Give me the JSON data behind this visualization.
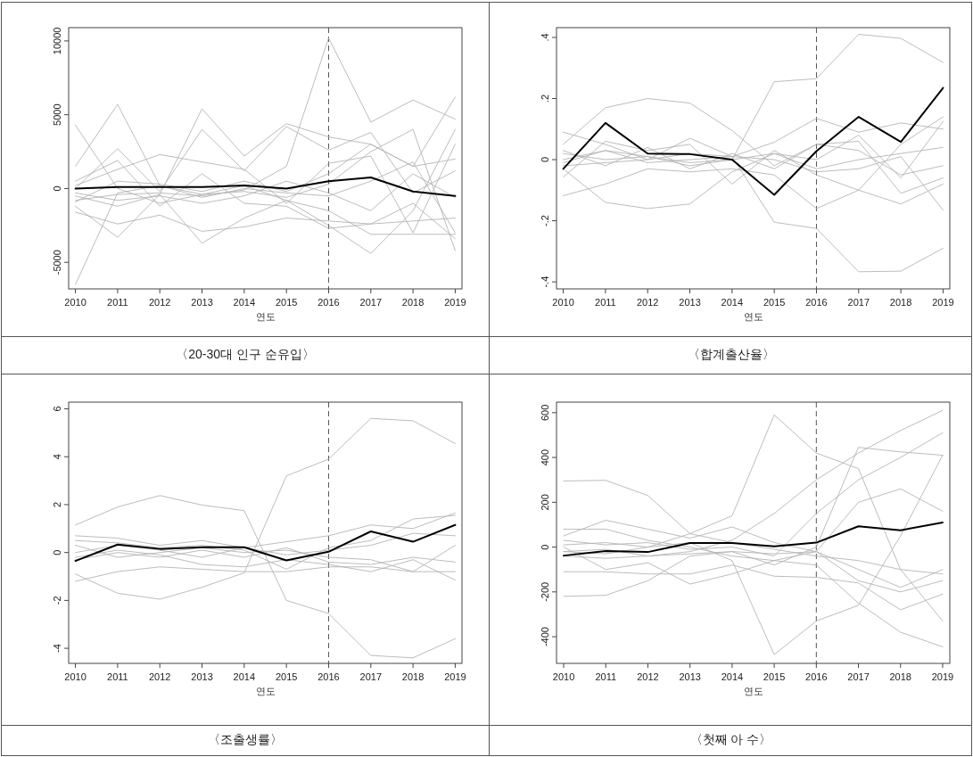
{
  "chart_data": [
    {
      "type": "line",
      "title": "〈20-30대 인구 순유입〉",
      "xlabel": "연도",
      "x": [
        2010,
        2011,
        2012,
        2013,
        2014,
        2015,
        2016,
        2017,
        2018,
        2019
      ],
      "xlim": [
        2009.84,
        2019.16
      ],
      "xticks": [
        2010,
        2011,
        2012,
        2013,
        2014,
        2015,
        2016,
        2017,
        2018,
        2019
      ],
      "ylim": [
        -6800,
        10900
      ],
      "yticks": [
        -5000,
        0,
        5000,
        10000
      ],
      "ref_lines": [
        {
          "axis": "x",
          "value": 2016,
          "line_style": "dashed",
          "color": "#555555"
        }
      ],
      "series": [
        {
          "color": "#000000",
          "values": [
            0,
            100,
            100,
            100,
            200,
            0,
            500,
            750,
            -200,
            -500
          ]
        },
        {
          "color": "#b4b4b4",
          "values": [
            -800,
            -400,
            -300,
            -500,
            -100,
            1500,
            10200,
            4500,
            6000,
            4700
          ]
        },
        {
          "color": "#b4b4b4",
          "values": [
            -6500,
            -300,
            200,
            -400,
            -200,
            -600,
            300,
            2500,
            4000,
            -4200
          ]
        },
        {
          "color": "#b4b4b4",
          "values": [
            4300,
            0,
            -1000,
            -400,
            200,
            -800,
            -2500,
            -4400,
            -1500,
            4000
          ]
        },
        {
          "color": "#b4b4b4",
          "values": [
            1500,
            5700,
            200,
            -600,
            0,
            -300,
            -500,
            500,
            1800,
            -3000
          ]
        },
        {
          "color": "#b4b4b4",
          "values": [
            -500,
            -1200,
            -400,
            5400,
            2200,
            4400,
            3500,
            3000,
            1500,
            6200
          ]
        },
        {
          "color": "#b4b4b4",
          "values": [
            -1200,
            -3300,
            -400,
            -3700,
            -2000,
            -800,
            -1500,
            -3100,
            -3100,
            -3100
          ]
        },
        {
          "color": "#b4b4b4",
          "values": [
            0,
            2700,
            -200,
            4000,
            1200,
            4200,
            2600,
            3800,
            -300,
            1200
          ]
        },
        {
          "color": "#b4b4b4",
          "values": [
            -1600,
            -2400,
            -1800,
            -2900,
            -2600,
            -2000,
            -2200,
            -2400,
            -2200,
            -2000
          ]
        },
        {
          "color": "#b4b4b4",
          "values": [
            200,
            1300,
            2300,
            1800,
            1300,
            -1000,
            1700,
            2200,
            -3000,
            3000
          ]
        },
        {
          "color": "#b4b4b4",
          "values": [
            -300,
            -800,
            -500,
            -1000,
            -500,
            500,
            -300,
            -1500,
            1000,
            -600
          ]
        },
        {
          "color": "#b4b4b4",
          "values": [
            500,
            1900,
            -1200,
            1000,
            -1000,
            -1200,
            -2700,
            -2400,
            -1000,
            -3400
          ]
        },
        {
          "color": "#b4b4b4",
          "values": [
            -900,
            500,
            300,
            -200,
            500,
            -200,
            1000,
            3000,
            1500,
            2000
          ]
        }
      ]
    },
    {
      "type": "line",
      "title": "〈합계출산율〉",
      "xlabel": "연도",
      "x": [
        2010,
        2011,
        2012,
        2013,
        2014,
        2015,
        2016,
        2017,
        2018,
        2019
      ],
      "xlim": [
        2009.84,
        2019.16
      ],
      "xticks": [
        2010,
        2011,
        2012,
        2013,
        2014,
        2015,
        2016,
        2017,
        2018,
        2019
      ],
      "ylim": [
        -0.423,
        0.432
      ],
      "yticks": [
        {
          "value": -0.4,
          "label": "-.4"
        },
        {
          "value": -0.2,
          "label": "-.2"
        },
        0,
        {
          "value": 0.2,
          "label": ".2"
        },
        {
          "value": 0.4,
          "label": ".4"
        }
      ],
      "ref_lines": [
        {
          "axis": "x",
          "value": 2016,
          "line_style": "dashed",
          "color": "#555555"
        }
      ],
      "series": [
        {
          "color": "#000000",
          "values": [
            -0.03,
            0.12,
            0.02,
            0.018,
            0.0,
            -0.115,
            0.028,
            0.14,
            0.058,
            0.235
          ]
        },
        {
          "color": "#b4b4b4",
          "values": [
            0.05,
            0.17,
            0.2,
            0.185,
            0.095,
            -0.02,
            0.05,
            0.03,
            -0.05,
            -0.02
          ]
        },
        {
          "color": "#b4b4b4",
          "values": [
            -0.03,
            -0.14,
            -0.16,
            -0.145,
            -0.04,
            0.02,
            -0.03,
            0.0,
            0.02,
            0.04
          ]
        },
        {
          "color": "#b4b4b4",
          "values": [
            0.0,
            0.03,
            0.01,
            -0.02,
            0.0,
            0.255,
            0.265,
            0.41,
            0.397,
            0.318
          ]
        },
        {
          "color": "#b4b4b4",
          "values": [
            -0.02,
            -0.01,
            0.0,
            0.02,
            0.01,
            -0.205,
            -0.225,
            -0.367,
            -0.365,
            -0.29
          ]
        },
        {
          "color": "#b4b4b4",
          "values": [
            -0.118,
            -0.08,
            -0.03,
            -0.04,
            -0.03,
            -0.05,
            -0.16,
            -0.1,
            0.05,
            0.14
          ]
        },
        {
          "color": "#b4b4b4",
          "values": [
            0.09,
            0.05,
            0.0,
            0.07,
            0.01,
            0.057,
            0.135,
            0.09,
            0.12,
            0.1
          ]
        },
        {
          "color": "#b4b4b4",
          "values": [
            -0.057,
            0.06,
            0.03,
            0.05,
            -0.08,
            0.03,
            -0.05,
            -0.1,
            -0.145,
            -0.08
          ]
        },
        {
          "color": "#b4b4b4",
          "values": [
            0.03,
            -0.02,
            0.04,
            -0.03,
            0.02,
            -0.03,
            0.05,
            0.06,
            -0.11,
            -0.06
          ]
        },
        {
          "color": "#b4b4b4",
          "values": [
            -0.01,
            0.03,
            -0.01,
            0.0,
            0.01,
            0.0,
            -0.04,
            -0.03,
            0.01,
            -0.165
          ]
        },
        {
          "color": "#b4b4b4",
          "values": [
            0.02,
            0.0,
            0.01,
            -0.01,
            0.0,
            0.02,
            0.0,
            0.08,
            -0.06,
            0.125
          ]
        }
      ]
    },
    {
      "type": "line",
      "title": "〈조출생률〉",
      "xlabel": "연도",
      "x": [
        2010,
        2011,
        2012,
        2013,
        2014,
        2015,
        2016,
        2017,
        2018,
        2019
      ],
      "xlim": [
        2009.84,
        2019.16
      ],
      "xticks": [
        2010,
        2011,
        2012,
        2013,
        2014,
        2015,
        2016,
        2017,
        2018,
        2019
      ],
      "ylim": [
        -4.63,
        6.28
      ],
      "yticks": [
        -4,
        -2,
        0,
        2,
        4,
        6
      ],
      "ref_lines": [
        {
          "axis": "x",
          "value": 2016,
          "line_style": "dashed",
          "color": "#555555"
        }
      ],
      "series": [
        {
          "color": "#000000",
          "values": [
            -0.35,
            0.33,
            0.15,
            0.22,
            0.22,
            -0.33,
            0.03,
            0.88,
            0.45,
            1.15
          ]
        },
        {
          "color": "#b4b4b4",
          "values": [
            1.15,
            1.9,
            2.38,
            1.98,
            1.75,
            -2.0,
            -2.55,
            -4.3,
            -4.4,
            -3.6
          ]
        },
        {
          "color": "#b4b4b4",
          "values": [
            -0.9,
            -1.7,
            -1.95,
            -1.45,
            -0.85,
            3.2,
            3.9,
            5.6,
            5.5,
            4.55
          ]
        },
        {
          "color": "#b4b4b4",
          "values": [
            -1.2,
            -0.8,
            -0.6,
            -0.7,
            -0.8,
            -0.8,
            -0.6,
            -0.6,
            -0.8,
            -0.8
          ]
        },
        {
          "color": "#b4b4b4",
          "values": [
            0.7,
            0.6,
            0.3,
            0.5,
            0.2,
            0.45,
            0.7,
            1.15,
            1.0,
            1.65
          ]
        },
        {
          "color": "#b4b4b4",
          "values": [
            0.5,
            0.4,
            0.2,
            0.3,
            0.1,
            -0.7,
            0.2,
            0.5,
            1.4,
            1.55
          ]
        },
        {
          "color": "#b4b4b4",
          "values": [
            -0.2,
            0.1,
            -0.1,
            -0.5,
            -0.6,
            -0.3,
            -0.5,
            -0.8,
            -0.3,
            -1.15
          ]
        },
        {
          "color": "#b4b4b4",
          "values": [
            0.3,
            -0.2,
            0.0,
            0.2,
            0.0,
            0.1,
            -0.2,
            -0.3,
            -0.8,
            0.3
          ]
        },
        {
          "color": "#b4b4b4",
          "values": [
            0.0,
            0.3,
            0.1,
            -0.2,
            0.2,
            -0.1,
            0.1,
            0.3,
            0.8,
            0.7
          ]
        },
        {
          "color": "#b4b4b4",
          "values": [
            -0.3,
            0.0,
            -0.2,
            0.1,
            -0.2,
            0.2,
            -0.4,
            -0.5,
            -0.2,
            -0.4
          ]
        }
      ]
    },
    {
      "type": "line",
      "title": "〈첫째 아 수〉",
      "xlabel": "연도",
      "x": [
        2010,
        2011,
        2012,
        2013,
        2014,
        2015,
        2016,
        2017,
        2018,
        2019
      ],
      "xlim": [
        2009.83,
        2019.17
      ],
      "xticks": [
        2010,
        2011,
        2012,
        2013,
        2014,
        2015,
        2016,
        2017,
        2018,
        2019
      ],
      "ylim": [
        -519,
        647
      ],
      "yticks": [
        -400,
        -200,
        0,
        200,
        400,
        600
      ],
      "ref_lines": [
        {
          "axis": "x",
          "value": 2016,
          "line_style": "dashed",
          "color": "#555555"
        }
      ],
      "series": [
        {
          "color": "#000000",
          "values": [
            -38,
            -18,
            -22,
            18,
            18,
            3,
            20,
            93,
            75,
            110
          ]
        },
        {
          "color": "#b4b4b4",
          "values": [
            295,
            298,
            230,
            60,
            20,
            -10,
            -40,
            -60,
            -100,
            -120
          ]
        },
        {
          "color": "#b4b4b4",
          "values": [
            -20,
            -30,
            0,
            20,
            -60,
            -480,
            -330,
            -260,
            50,
            410
          ]
        },
        {
          "color": "#b4b4b4",
          "values": [
            -220,
            -215,
            -150,
            -40,
            -20,
            -30,
            -20,
            -150,
            -200,
            -150
          ]
        },
        {
          "color": "#b4b4b4",
          "values": [
            10,
            20,
            0,
            60,
            140,
            590,
            420,
            350,
            -100,
            -330
          ]
        },
        {
          "color": "#b4b4b4",
          "values": [
            -20,
            -10,
            -40,
            -20,
            30,
            150,
            300,
            420,
            520,
            610
          ]
        },
        {
          "color": "#b4b4b4",
          "values": [
            30,
            10,
            20,
            -10,
            0,
            -40,
            150,
            300,
            400,
            510
          ]
        },
        {
          "color": "#b4b4b4",
          "values": [
            -40,
            -50,
            -40,
            -30,
            -20,
            -80,
            0,
            445,
            425,
            410
          ]
        },
        {
          "color": "#b4b4b4",
          "values": [
            80,
            80,
            30,
            0,
            -40,
            -60,
            -80,
            -250,
            -380,
            -445
          ]
        },
        {
          "color": "#b4b4b4",
          "values": [
            -110,
            -110,
            -120,
            -120,
            -80,
            -130,
            -135,
            -160,
            -280,
            -210
          ]
        },
        {
          "color": "#b4b4b4",
          "values": [
            50,
            120,
            80,
            40,
            90,
            20,
            -20,
            200,
            260,
            160
          ]
        },
        {
          "color": "#b4b4b4",
          "values": [
            0,
            -100,
            -70,
            -165,
            -120,
            -60,
            -20,
            -100,
            -180,
            -100
          ]
        }
      ]
    }
  ]
}
